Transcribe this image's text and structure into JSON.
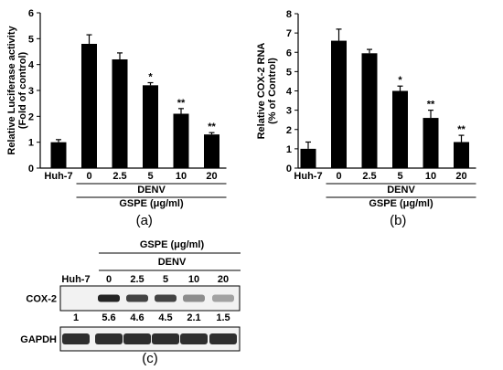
{
  "chart_data": [
    {
      "panel": "(a)",
      "type": "bar",
      "ylabel": "Relative Luciferase activity\n(Fold of control)",
      "ylim": [
        0,
        6
      ],
      "yticks": [
        0,
        1,
        2,
        3,
        4,
        5,
        6
      ],
      "categories": [
        "Huh-7",
        "0",
        "2.5",
        "5",
        "10",
        "20"
      ],
      "values": [
        1.0,
        4.8,
        4.2,
        3.2,
        2.1,
        1.3
      ],
      "errors": [
        0.1,
        0.35,
        0.25,
        0.1,
        0.2,
        0.07
      ],
      "significance": [
        "",
        "",
        "",
        "*",
        "**",
        "**"
      ],
      "group_label_1": "DENV",
      "group_label_2": "GSPE (μg/ml)",
      "bar_color": "#000000"
    },
    {
      "panel": "(b)",
      "type": "bar",
      "ylabel": "Relative COX-2 RNA\n(% of Control)",
      "ylim": [
        0,
        8
      ],
      "yticks": [
        0,
        1,
        2,
        3,
        4,
        5,
        6,
        7,
        8
      ],
      "categories": [
        "Huh-7",
        "0",
        "2.5",
        "5",
        "10",
        "20"
      ],
      "values": [
        1.0,
        6.6,
        5.95,
        4.0,
        2.6,
        1.35
      ],
      "errors": [
        0.35,
        0.6,
        0.2,
        0.25,
        0.4,
        0.35
      ],
      "significance": [
        "",
        "",
        "",
        "*",
        "**",
        "**"
      ],
      "group_label_1": "DENV",
      "group_label_2": "GSPE (μg/ml)",
      "bar_color": "#000000"
    }
  ],
  "blot": {
    "panel": "(c)",
    "header": "GSPE (μg/ml)",
    "group": "DENV",
    "lanes": [
      "Huh-7",
      "0",
      "2.5",
      "5",
      "10",
      "20"
    ],
    "rows": [
      {
        "label": "COX-2",
        "intensities": [
          0.0,
          0.95,
          0.8,
          0.8,
          0.45,
          0.35
        ]
      },
      {
        "label": "GAPDH",
        "intensities": [
          0.9,
          0.9,
          0.9,
          0.9,
          0.9,
          0.9
        ]
      }
    ],
    "ratios": [
      "1",
      "5.6",
      "4.6",
      "4.5",
      "2.1",
      "1.5"
    ]
  }
}
